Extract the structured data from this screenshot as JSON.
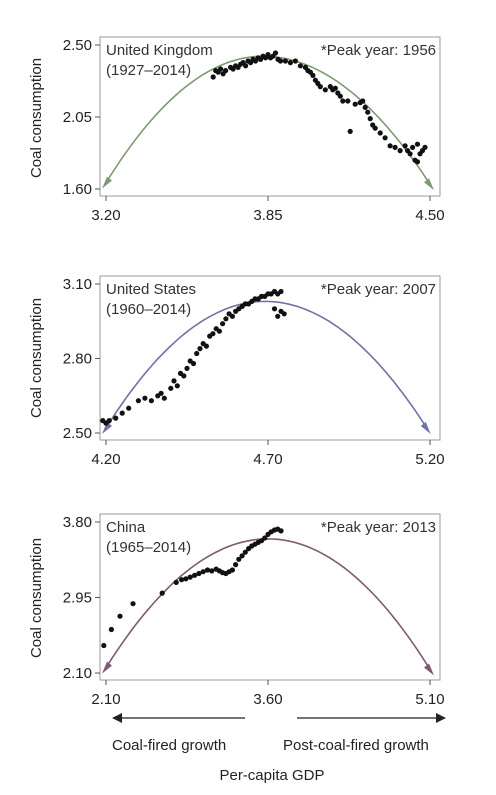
{
  "ylabel": "Coal consumption",
  "xlabel": "Per-capita GDP",
  "arrow_left_label": "Coal-fired growth",
  "arrow_right_label": "Post-coal-fired growth",
  "chart_data": [
    {
      "type": "scatter",
      "title": "United Kingdom",
      "subtitle": "(1927–2014)",
      "peak_note": "*Peak year: 1956",
      "ylabel": "Coal consumption",
      "xticks": [
        "3.20",
        "3.85",
        "4.50"
      ],
      "yticks": [
        "2.50",
        "2.05",
        "1.60"
      ],
      "xlim": [
        3.2,
        4.5
      ],
      "ylim": [
        1.6,
        2.5
      ],
      "fit_color": "#7e9a72",
      "fit": {
        "x_start": 3.2,
        "y_start": 1.64,
        "x_peak": 3.83,
        "y_peak": 2.43,
        "x_end": 4.5,
        "y_end": 1.63
      },
      "points": [
        [
          3.63,
          2.3
        ],
        [
          3.64,
          2.34
        ],
        [
          3.65,
          2.33
        ],
        [
          3.66,
          2.35
        ],
        [
          3.67,
          2.32
        ],
        [
          3.68,
          2.34
        ],
        [
          3.7,
          2.36
        ],
        [
          3.71,
          2.35
        ],
        [
          3.72,
          2.37
        ],
        [
          3.73,
          2.36
        ],
        [
          3.74,
          2.38
        ],
        [
          3.75,
          2.39
        ],
        [
          3.76,
          2.37
        ],
        [
          3.77,
          2.4
        ],
        [
          3.78,
          2.39
        ],
        [
          3.79,
          2.41
        ],
        [
          3.8,
          2.4
        ],
        [
          3.81,
          2.42
        ],
        [
          3.82,
          2.41
        ],
        [
          3.83,
          2.43
        ],
        [
          3.84,
          2.42
        ],
        [
          3.85,
          2.44
        ],
        [
          3.86,
          2.42
        ],
        [
          3.87,
          2.43
        ],
        [
          3.88,
          2.45
        ],
        [
          3.89,
          2.41
        ],
        [
          3.9,
          2.4
        ],
        [
          3.92,
          2.4
        ],
        [
          3.94,
          2.39
        ],
        [
          3.96,
          2.4
        ],
        [
          3.98,
          2.37
        ],
        [
          4.0,
          2.36
        ],
        [
          4.01,
          2.34
        ],
        [
          4.02,
          2.33
        ],
        [
          4.03,
          2.31
        ],
        [
          4.04,
          2.28
        ],
        [
          4.05,
          2.26
        ],
        [
          4.06,
          2.24
        ],
        [
          4.08,
          2.22
        ],
        [
          4.1,
          2.24
        ],
        [
          4.11,
          2.22
        ],
        [
          4.12,
          2.23
        ],
        [
          4.13,
          2.2
        ],
        [
          4.14,
          2.18
        ],
        [
          4.15,
          2.15
        ],
        [
          4.17,
          2.15
        ],
        [
          4.18,
          1.96
        ],
        [
          4.2,
          2.13
        ],
        [
          4.22,
          2.14
        ],
        [
          4.23,
          2.15
        ],
        [
          4.24,
          2.11
        ],
        [
          4.25,
          2.08
        ],
        [
          4.26,
          2.04
        ],
        [
          4.27,
          2.0
        ],
        [
          4.28,
          1.98
        ],
        [
          4.3,
          1.95
        ],
        [
          4.32,
          1.92
        ],
        [
          4.34,
          1.87
        ],
        [
          4.36,
          1.86
        ],
        [
          4.38,
          1.84
        ],
        [
          4.4,
          1.87
        ],
        [
          4.41,
          1.84
        ],
        [
          4.42,
          1.82
        ],
        [
          4.43,
          1.86
        ],
        [
          4.44,
          1.78
        ],
        [
          4.45,
          1.77
        ],
        [
          4.46,
          1.82
        ],
        [
          4.47,
          1.84
        ],
        [
          4.48,
          1.86
        ],
        [
          4.45,
          1.88
        ]
      ]
    },
    {
      "type": "scatter",
      "title": "United States",
      "subtitle": "(1960–2014)",
      "peak_note": "*Peak year: 2007",
      "ylabel": "Coal consumption",
      "xticks": [
        "4.20",
        "4.70",
        "5.20"
      ],
      "yticks": [
        "3.10",
        "2.80",
        "2.50"
      ],
      "xlim": [
        4.2,
        5.2
      ],
      "ylim": [
        2.5,
        3.1
      ],
      "fit_color": "#6f72a4",
      "fit": {
        "x_start": 4.2,
        "y_start": 2.52,
        "x_peak": 4.69,
        "y_peak": 3.03,
        "x_end": 5.19,
        "y_end": 2.52
      },
      "points": [
        [
          4.19,
          2.55
        ],
        [
          4.2,
          2.54
        ],
        [
          4.21,
          2.55
        ],
        [
          4.23,
          2.56
        ],
        [
          4.25,
          2.58
        ],
        [
          4.27,
          2.6
        ],
        [
          4.3,
          2.63
        ],
        [
          4.32,
          2.64
        ],
        [
          4.34,
          2.63
        ],
        [
          4.36,
          2.65
        ],
        [
          4.37,
          2.66
        ],
        [
          4.38,
          2.64
        ],
        [
          4.4,
          2.68
        ],
        [
          4.41,
          2.71
        ],
        [
          4.42,
          2.69
        ],
        [
          4.43,
          2.74
        ],
        [
          4.44,
          2.73
        ],
        [
          4.45,
          2.76
        ],
        [
          4.46,
          2.79
        ],
        [
          4.47,
          2.78
        ],
        [
          4.48,
          2.82
        ],
        [
          4.49,
          2.84
        ],
        [
          4.5,
          2.86
        ],
        [
          4.51,
          2.85
        ],
        [
          4.52,
          2.89
        ],
        [
          4.53,
          2.9
        ],
        [
          4.54,
          2.92
        ],
        [
          4.55,
          2.91
        ],
        [
          4.56,
          2.94
        ],
        [
          4.57,
          2.96
        ],
        [
          4.58,
          2.98
        ],
        [
          4.59,
          2.97
        ],
        [
          4.6,
          2.99
        ],
        [
          4.61,
          3.0
        ],
        [
          4.62,
          3.01
        ],
        [
          4.63,
          3.02
        ],
        [
          4.64,
          3.02
        ],
        [
          4.65,
          3.03
        ],
        [
          4.66,
          3.04
        ],
        [
          4.67,
          3.04
        ],
        [
          4.68,
          3.05
        ],
        [
          4.69,
          3.05
        ],
        [
          4.7,
          3.06
        ],
        [
          4.71,
          3.06
        ],
        [
          4.72,
          3.07
        ],
        [
          4.73,
          3.06
        ],
        [
          4.74,
          3.07
        ],
        [
          4.72,
          3.0
        ],
        [
          4.73,
          2.97
        ],
        [
          4.74,
          2.99
        ],
        [
          4.75,
          2.98
        ]
      ]
    },
    {
      "type": "scatter",
      "title": "China",
      "subtitle": "(1965–2014)",
      "peak_note": "*Peak year: 2013",
      "ylabel": "Coal consumption",
      "xticks": [
        "2.10",
        "3.60",
        "5.10"
      ],
      "yticks": [
        "3.80",
        "2.95",
        "2.10"
      ],
      "xlim": [
        2.1,
        5.1
      ],
      "ylim": [
        2.1,
        3.8
      ],
      "fit_color": "#7e5a72",
      "fit": {
        "x_start": 2.1,
        "y_start": 2.16,
        "x_peak": 3.6,
        "y_peak": 3.61,
        "x_end": 5.1,
        "y_end": 2.14
      },
      "points": [
        [
          2.08,
          2.41
        ],
        [
          2.15,
          2.59
        ],
        [
          2.23,
          2.74
        ],
        [
          2.35,
          2.88
        ],
        [
          2.62,
          3.0
        ],
        [
          2.75,
          3.12
        ],
        [
          2.8,
          3.15
        ],
        [
          2.84,
          3.16
        ],
        [
          2.88,
          3.18
        ],
        [
          2.92,
          3.2
        ],
        [
          2.96,
          3.22
        ],
        [
          3.0,
          3.24
        ],
        [
          3.04,
          3.26
        ],
        [
          3.08,
          3.25
        ],
        [
          3.12,
          3.27
        ],
        [
          3.15,
          3.25
        ],
        [
          3.18,
          3.23
        ],
        [
          3.21,
          3.22
        ],
        [
          3.24,
          3.24
        ],
        [
          3.27,
          3.26
        ],
        [
          3.3,
          3.32
        ],
        [
          3.33,
          3.38
        ],
        [
          3.36,
          3.42
        ],
        [
          3.39,
          3.46
        ],
        [
          3.42,
          3.5
        ],
        [
          3.45,
          3.53
        ],
        [
          3.48,
          3.55
        ],
        [
          3.51,
          3.57
        ],
        [
          3.54,
          3.59
        ],
        [
          3.57,
          3.62
        ],
        [
          3.6,
          3.66
        ],
        [
          3.63,
          3.69
        ],
        [
          3.66,
          3.71
        ],
        [
          3.69,
          3.72
        ],
        [
          3.72,
          3.7
        ]
      ]
    }
  ]
}
